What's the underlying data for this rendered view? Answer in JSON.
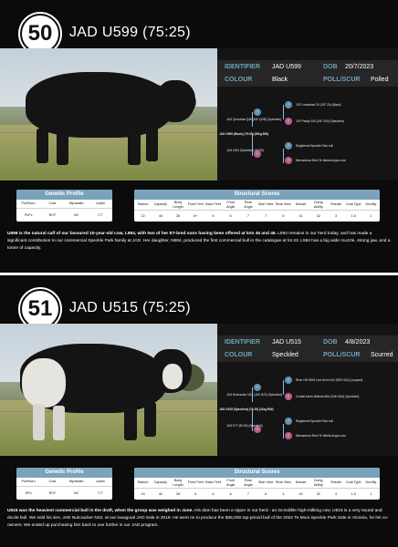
{
  "common": {
    "label_identifier": "IDENTIFIER",
    "label_dob": "DOB",
    "label_colour": "COLOUR",
    "label_poll": "POLL/SCUR",
    "genetic_profile_title": "Genetic Profile",
    "structural_scores_title": "Structural Scores",
    "genetic_headers": [
      "Poll/Horn",
      "Coat",
      "Myostatin",
      "Leptin"
    ],
    "structural_headers": [
      "Stature",
      "Capacity",
      "Body Length",
      "Front Feet",
      "Back Feet",
      "Front Angle",
      "Rear Angle",
      "Side View",
      "Rear View",
      "Muscle",
      "Doing Ability",
      "Sheath",
      "Coat Type",
      "Docility"
    ]
  },
  "lots": [
    {
      "number": "50",
      "title": "JAD U599 (75:25)",
      "identifier": "JAD U599",
      "dob": "20/7/2023",
      "colour": "Black",
      "poll": "Polled",
      "pedigree": {
        "subject": "JAD U599 (Black) (75:25) (28kg BW)",
        "sire": "JAD Quixotical Q48 (160 QHB) (Speckled)",
        "sire_sire": "JSF Unmarked 20 (JSF 20) (Black)",
        "sire_dam": "JSF Paddy 340 (JSF 340) (Speckled)",
        "dam": "JAD L594 (Speckled) (50:50)",
        "dam_sire": "Registered Speckle Park bull",
        "dam_dam": "Minnamurra Bred Te Mania Angus cow"
      },
      "genetic_values": [
        "PcPc",
        "RCF",
        "NC",
        "CT"
      ],
      "structural_values": [
        "22",
        "40",
        "26",
        "6+",
        "6",
        "6",
        "7",
        "7",
        "5",
        "41",
        "32",
        "3",
        "1.5",
        "1"
      ],
      "description_bold": "U599 is the natural calf of our favoured 10-year-old cow, L594, with two of her ET-bred sons having been offered at lots 45 and 46.",
      "description_rest": " L594 remains in our herd today, and has made a significant contribution to our commercial Speckle Park family at JAD. Her daughter, N584, produced the first commercial bull in the catalogue at lot 43. L594 has a big wide muzzle, strong jaw, and a tonne of capacity."
    },
    {
      "number": "51",
      "title": "JAD U515 (75:25)",
      "identifier": "JAD U515",
      "dob": "4/8/2023",
      "colour": "Speckled",
      "poll": "Scurred",
      "pedigree": {
        "subject": "JAD U515 (Speckled) (75:25) (41kg BW)",
        "sire": "JAD Nutcracker N22 (JAD N22) (Speckled)",
        "sire_sire": "River Hill RDW Line Drive 542 (RED 542) (Leopard)",
        "sire_dam": "Codale Acres Belinda 66A (CNK 66A) (Speckled)",
        "dam": "JAD K77 (50:50) (Speckled)",
        "dam_sire": "Registered Speckle Park bull",
        "dam_dam": "Minnamurra Bred Te Mania Angus cow"
      },
      "genetic_values": [
        "HPc",
        "RCF",
        "NC",
        "CT"
      ],
      "structural_values": [
        "24",
        "42",
        "28",
        "6",
        "6",
        "6",
        "7",
        "6",
        "3",
        "42",
        "32",
        "4",
        "1.5",
        "1"
      ],
      "description_bold": "U515 was the heaviest commercial bull in the draft, when the group was weighed in June.",
      "description_rest": " His dam has been a ripper in our herd - an incredible high-milking cow. U515 is a very sound and docile bull. We sold his sire, JAD Nutcracker N22, at our inaugural JAD Sale in 2019. He went on to produce the $36,000 top-priced bull of the 2022 Te Mooi Speckle Park Sale in Victoria, for his co-owners. We ended up purchasing him back to use further in our JAD program."
    }
  ]
}
